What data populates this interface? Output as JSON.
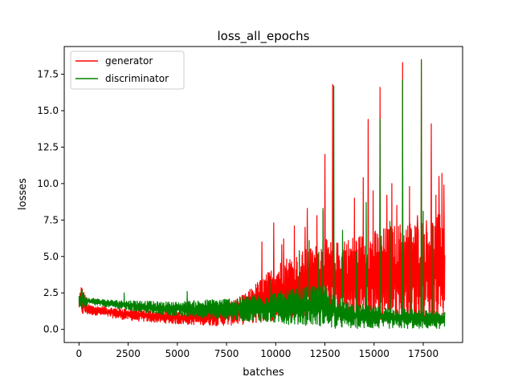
{
  "chart_data": {
    "type": "line",
    "title": "loss_all_epochs",
    "xlabel": "batches",
    "ylabel": "losses",
    "xlim": [
      -750,
      19500
    ],
    "ylim": [
      -0.9,
      19.4
    ],
    "x_ticks": [
      0,
      2500,
      5000,
      7500,
      10000,
      12500,
      15000,
      17500
    ],
    "x_tick_labels": [
      "0",
      "2500",
      "5000",
      "7500",
      "10000",
      "12500",
      "15000",
      "17500"
    ],
    "y_ticks": [
      0.0,
      2.5,
      5.0,
      7.5,
      10.0,
      12.5,
      15.0,
      17.5
    ],
    "y_tick_labels": [
      "0.0",
      "2.5",
      "5.0",
      "7.5",
      "10.0",
      "12.5",
      "15.0",
      "17.5"
    ],
    "legend": {
      "placement": "top-left"
    },
    "grid": false,
    "series": [
      {
        "name": "generator",
        "color": "#ff0000",
        "envelope": {
          "x": [
            0,
            100,
            500,
            1000,
            2000,
            3000,
            4000,
            5000,
            6000,
            7000,
            7500,
            8000,
            8500,
            9000,
            9500,
            10000,
            10500,
            11000,
            11500,
            12000,
            12500,
            13000,
            13500,
            14000,
            14500,
            15000,
            15500,
            16000,
            16500,
            17000,
            17500,
            18000,
            18500,
            18600
          ],
          "low": [
            1.5,
            0.9,
            1.0,
            0.95,
            0.7,
            0.55,
            0.45,
            0.35,
            0.3,
            0.25,
            0.25,
            0.3,
            0.35,
            0.4,
            0.5,
            0.6,
            0.7,
            0.8,
            0.85,
            0.9,
            0.95,
            0.5,
            0.6,
            0.7,
            0.5,
            0.6,
            0.5,
            0.5,
            0.6,
            0.5,
            0.5,
            0.5,
            0.5,
            0.6
          ],
          "high": [
            2.1,
            3.2,
            1.7,
            1.6,
            1.5,
            1.4,
            1.3,
            1.3,
            1.4,
            1.6,
            1.9,
            2.1,
            2.5,
            3.2,
            3.8,
            4.5,
            5.0,
            5.2,
            5.5,
            5.8,
            6.2,
            6.0,
            6.2,
            6.5,
            6.6,
            6.8,
            7.0,
            7.2,
            7.4,
            7.5,
            7.6,
            7.8,
            8.0,
            8.2
          ]
        },
        "spikes": [
          {
            "x": 9300,
            "y": 6.0
          },
          {
            "x": 9900,
            "y": 7.3
          },
          {
            "x": 10400,
            "y": 6.2
          },
          {
            "x": 10300,
            "y": 5.8
          },
          {
            "x": 10950,
            "y": 7.1
          },
          {
            "x": 11500,
            "y": 7.0
          },
          {
            "x": 11600,
            "y": 8.3
          },
          {
            "x": 12100,
            "y": 7.8
          },
          {
            "x": 12400,
            "y": 8.1
          },
          {
            "x": 12500,
            "y": 12.0
          },
          {
            "x": 12900,
            "y": 16.8
          },
          {
            "x": 13500,
            "y": 6.0
          },
          {
            "x": 14000,
            "y": 9.0
          },
          {
            "x": 14450,
            "y": 10.4
          },
          {
            "x": 14700,
            "y": 14.4
          },
          {
            "x": 14950,
            "y": 9.5
          },
          {
            "x": 15300,
            "y": 16.6
          },
          {
            "x": 15650,
            "y": 9.2
          },
          {
            "x": 15900,
            "y": 10.0
          },
          {
            "x": 16150,
            "y": 8.5
          },
          {
            "x": 16450,
            "y": 18.3
          },
          {
            "x": 16800,
            "y": 9.8
          },
          {
            "x": 17200,
            "y": 7.8
          },
          {
            "x": 17400,
            "y": 18.5
          },
          {
            "x": 17650,
            "y": 7.0
          },
          {
            "x": 17900,
            "y": 14.1
          },
          {
            "x": 18150,
            "y": 9.2
          },
          {
            "x": 18300,
            "y": 10.5
          },
          {
            "x": 18450,
            "y": 10.7
          },
          {
            "x": 18550,
            "y": 9.9
          }
        ]
      },
      {
        "name": "discriminator",
        "color": "#008000",
        "envelope": {
          "x": [
            0,
            100,
            500,
            1000,
            2000,
            3000,
            4000,
            5000,
            6000,
            7000,
            8000,
            9000,
            10000,
            11000,
            12000,
            12500,
            13000,
            13500,
            14000,
            15000,
            16000,
            17000,
            18000,
            18600
          ],
          "low": [
            1.6,
            1.3,
            1.7,
            1.6,
            1.4,
            1.2,
            1.0,
            0.9,
            0.8,
            0.7,
            0.6,
            0.5,
            0.4,
            0.3,
            0.25,
            0.2,
            0.0,
            0.05,
            0.05,
            0.05,
            0.05,
            0.05,
            0.05,
            0.05
          ],
          "high": [
            2.4,
            2.6,
            2.2,
            2.1,
            2.0,
            2.0,
            1.9,
            1.9,
            2.0,
            2.1,
            2.2,
            2.4,
            2.6,
            2.8,
            3.0,
            3.1,
            2.5,
            2.0,
            1.8,
            1.6,
            1.5,
            1.4,
            1.3,
            1.2
          ]
        },
        "spikes": [
          {
            "x": 150,
            "y": 2.7
          },
          {
            "x": 2300,
            "y": 2.5
          },
          {
            "x": 5500,
            "y": 2.6
          },
          {
            "x": 9700,
            "y": 3.4
          },
          {
            "x": 11200,
            "y": 5.4
          },
          {
            "x": 11700,
            "y": 6.1
          },
          {
            "x": 12200,
            "y": 5.3
          },
          {
            "x": 12400,
            "y": 8.3
          },
          {
            "x": 12950,
            "y": 16.7
          },
          {
            "x": 13400,
            "y": 6.8
          },
          {
            "x": 14100,
            "y": 5.3
          },
          {
            "x": 14600,
            "y": 8.7
          },
          {
            "x": 15300,
            "y": 14.4
          },
          {
            "x": 15800,
            "y": 7.4
          },
          {
            "x": 16450,
            "y": 17.1
          },
          {
            "x": 16900,
            "y": 6.8
          },
          {
            "x": 17400,
            "y": 18.5
          },
          {
            "x": 17500,
            "y": 8.1
          },
          {
            "x": 18000,
            "y": 7.1
          }
        ]
      }
    ]
  }
}
